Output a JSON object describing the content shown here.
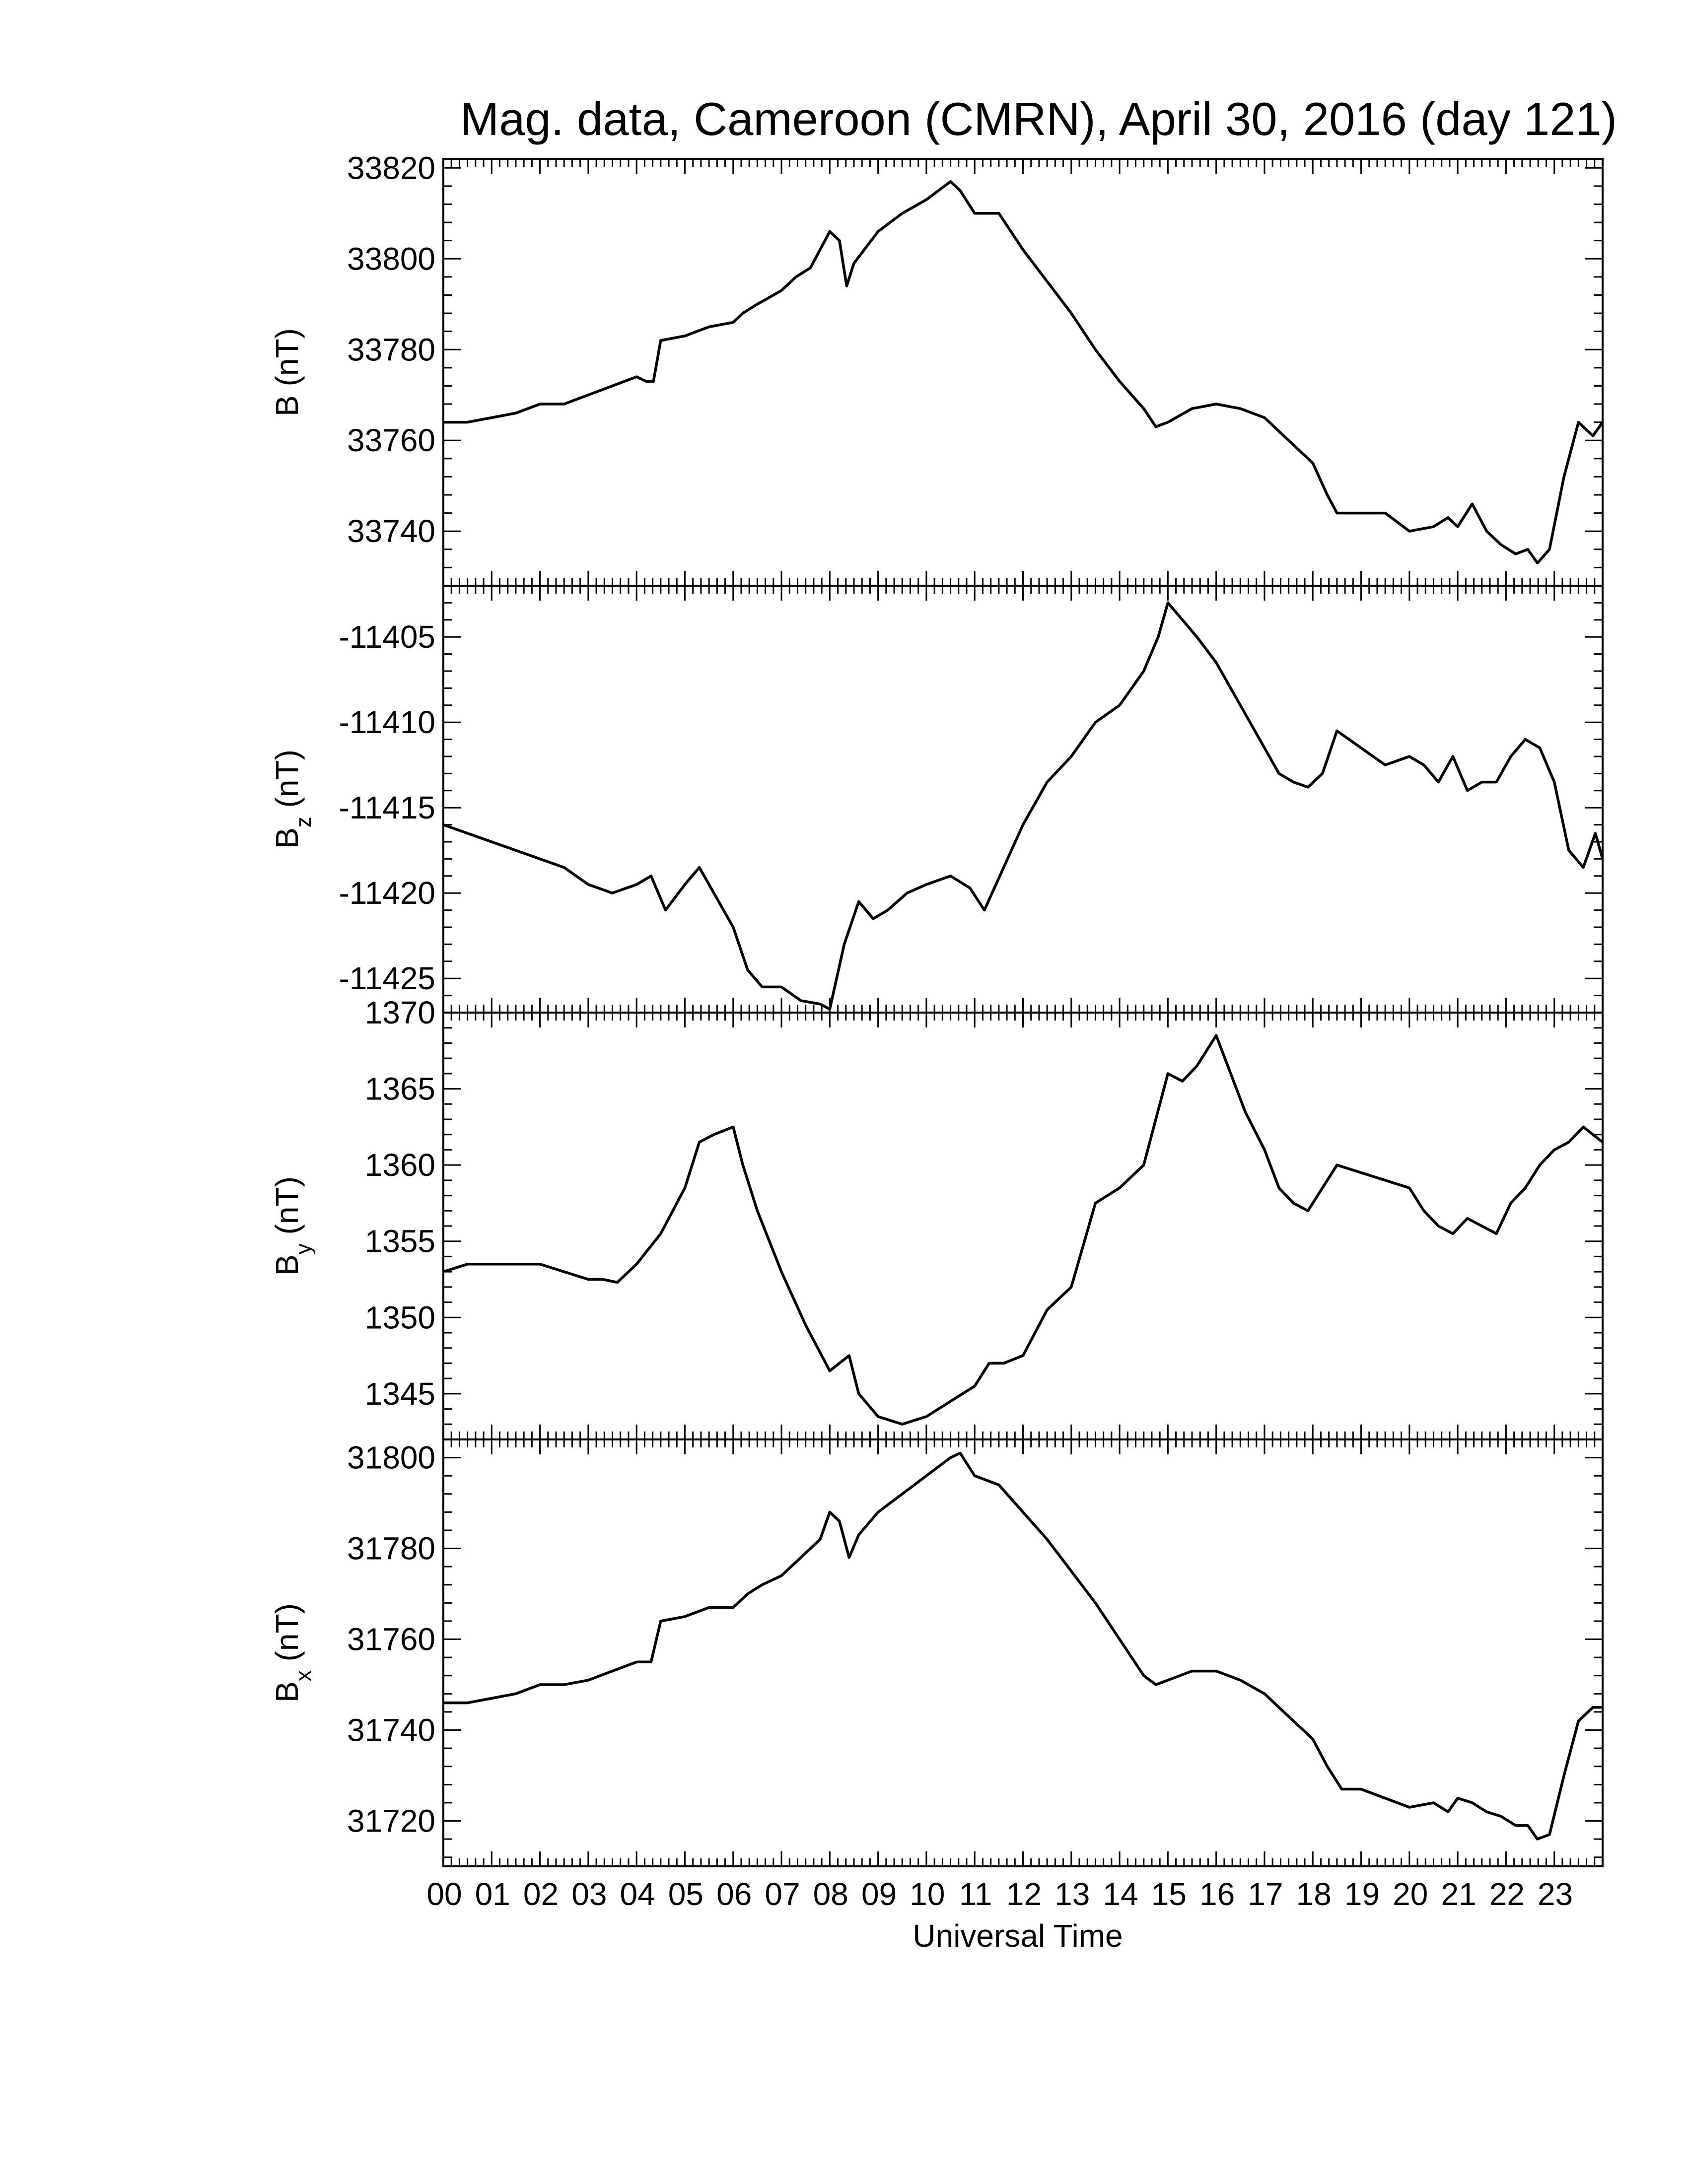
{
  "title": "Mag. data, Cameroon (CMRN), April 30, 2016 (day 121)",
  "xlabel": "Universal Time",
  "chart_data": [
    {
      "type": "line",
      "ylabel": {
        "main": "B",
        "sub": "",
        "unit": "(nT)"
      },
      "ylim": [
        33728,
        33822
      ],
      "yticks": [
        33740,
        33760,
        33780,
        33800,
        33820
      ],
      "ytick_labels": [
        "33740",
        "33760",
        "33780",
        "33800",
        "33820"
      ],
      "series": [
        {
          "x": [
            0,
            0.5,
            1,
            1.5,
            2,
            2.5,
            3,
            3.5,
            4,
            4.2,
            4.35,
            4.5,
            5,
            5.5,
            6,
            6.2,
            6.5,
            7,
            7.3,
            7.6,
            8,
            8.2,
            8.35,
            8.5,
            9,
            9.5,
            10,
            10.5,
            10.7,
            11,
            11.5,
            12,
            12.5,
            13,
            13.5,
            14,
            14.5,
            14.75,
            15,
            15.5,
            16,
            16.5,
            17,
            17.5,
            18,
            18.3,
            18.5,
            19,
            19.5,
            20,
            20.5,
            20.8,
            21,
            21.3,
            21.6,
            21.9,
            22.2,
            22.45,
            22.65,
            22.9,
            23.2,
            23.5,
            23.8,
            24
          ],
          "y": [
            33764,
            33764,
            33765,
            33766,
            33768,
            33768,
            33770,
            33772,
            33774,
            33773,
            33773,
            33782,
            33783,
            33785,
            33786,
            33788,
            33790,
            33793,
            33796,
            33798,
            33806,
            33804,
            33794,
            33799,
            33806,
            33810,
            33813,
            33817,
            33815,
            33810,
            33810,
            33802,
            33795,
            33788,
            33780,
            33773,
            33767,
            33763,
            33764,
            33767,
            33768,
            33767,
            33765,
            33760,
            33755,
            33748,
            33744,
            33744,
            33744,
            33740,
            33741,
            33743,
            33741,
            33746,
            33740,
            33737,
            33735,
            33736,
            33733,
            33736,
            33752,
            33764,
            33761,
            33764
          ]
        }
      ]
    },
    {
      "type": "line",
      "ylabel": {
        "main": "B",
        "sub": "z",
        "unit": "(nT)"
      },
      "ylim": [
        -11427,
        -11402
      ],
      "yticks": [
        -11425,
        -11420,
        -11415,
        -11410,
        -11405
      ],
      "ytick_labels": [
        "-11425",
        "-11420",
        "-11415",
        "-11410",
        "-11405"
      ],
      "series": [
        {
          "x": [
            0,
            0.5,
            1,
            1.5,
            2,
            2.5,
            3,
            3.5,
            4,
            4.3,
            4.6,
            5,
            5.3,
            5.7,
            6,
            6.3,
            6.6,
            7,
            7.4,
            7.8,
            8,
            8.3,
            8.6,
            8.9,
            9.2,
            9.6,
            10,
            10.5,
            10.9,
            11.2,
            11.6,
            12,
            12.5,
            13,
            13.5,
            14,
            14.5,
            14.8,
            15,
            15.3,
            15.6,
            16,
            16.5,
            17,
            17.3,
            17.6,
            17.9,
            18.2,
            18.5,
            19,
            19.5,
            20,
            20.3,
            20.6,
            20.9,
            21.2,
            21.5,
            21.8,
            22.1,
            22.4,
            22.7,
            23,
            23.3,
            23.6,
            23.85,
            24
          ],
          "y": [
            -11416,
            -11416.5,
            -11417,
            -11417.5,
            -11418,
            -11418.5,
            -11419.5,
            -11420,
            -11419.5,
            -11419,
            -11421,
            -11419.5,
            -11418.5,
            -11420.5,
            -11422,
            -11424.5,
            -11425.5,
            -11425.5,
            -11426.3,
            -11426.5,
            -11426.8,
            -11423,
            -11420.5,
            -11421.5,
            -11421,
            -11420,
            -11419.5,
            -11419,
            -11419.7,
            -11421,
            -11418.5,
            -11416,
            -11413.5,
            -11412,
            -11410,
            -11409,
            -11407,
            -11405,
            -11403,
            -11404,
            -11405,
            -11406.5,
            -11409,
            -11411.5,
            -11413,
            -11413.5,
            -11413.8,
            -11413,
            -11410.5,
            -11411.5,
            -11412.5,
            -11412,
            -11412.5,
            -11413.5,
            -11412,
            -11414,
            -11413.5,
            -11413.5,
            -11412,
            -11411,
            -11411.5,
            -11413.5,
            -11417.5,
            -11418.5,
            -11416.5,
            -11418
          ]
        }
      ]
    },
    {
      "type": "line",
      "ylabel": {
        "main": "B",
        "sub": "y",
        "unit": "(nT)"
      },
      "ylim": [
        1342,
        1370
      ],
      "yticks": [
        1345,
        1350,
        1355,
        1360,
        1365,
        1370
      ],
      "ytick_labels": [
        "1345",
        "1350",
        "1355",
        "1360",
        "1365",
        "1370"
      ],
      "series": [
        {
          "x": [
            0,
            0.5,
            1,
            1.5,
            2,
            2.5,
            3,
            3.3,
            3.6,
            4,
            4.5,
            5,
            5.3,
            5.6,
            6,
            6.2,
            6.5,
            7,
            7.5,
            8,
            8.2,
            8.4,
            8.6,
            9,
            9.5,
            10,
            10.5,
            11,
            11.3,
            11.6,
            12,
            12.5,
            13,
            13.5,
            14,
            14.5,
            15,
            15.3,
            15.6,
            16,
            16.3,
            16.6,
            17,
            17.3,
            17.6,
            17.9,
            18.2,
            18.5,
            19,
            19.5,
            20,
            20.3,
            20.6,
            20.9,
            21.2,
            21.5,
            21.8,
            22.1,
            22.4,
            22.7,
            23,
            23.3,
            23.6,
            24
          ],
          "y": [
            1353,
            1353.5,
            1353.5,
            1353.5,
            1353.5,
            1353,
            1352.5,
            1352.5,
            1352.3,
            1353.5,
            1355.5,
            1358.5,
            1361.5,
            1362,
            1362.5,
            1360,
            1357,
            1353,
            1349.5,
            1346.5,
            1347,
            1347.5,
            1345,
            1343.5,
            1343,
            1343.5,
            1344.5,
            1345.5,
            1347,
            1347,
            1347.5,
            1350.5,
            1352,
            1357.5,
            1358.5,
            1360,
            1366,
            1365.5,
            1366.5,
            1368.5,
            1366,
            1363.5,
            1361,
            1358.5,
            1357.5,
            1357,
            1358.5,
            1360,
            1359.5,
            1359,
            1358.5,
            1357,
            1356,
            1355.5,
            1356.5,
            1356,
            1355.5,
            1357.5,
            1358.5,
            1360,
            1361,
            1361.5,
            1362.5,
            1361.5
          ]
        }
      ]
    },
    {
      "type": "line",
      "ylabel": {
        "main": "B",
        "sub": "x",
        "unit": "(nT)"
      },
      "ylim": [
        31710,
        31804
      ],
      "yticks": [
        31720,
        31740,
        31760,
        31780,
        31800
      ],
      "ytick_labels": [
        "31720",
        "31740",
        "31760",
        "31780",
        "31800"
      ],
      "series": [
        {
          "x": [
            0,
            0.5,
            1,
            1.5,
            2,
            2.5,
            3,
            3.5,
            4,
            4.3,
            4.5,
            5,
            5.5,
            6,
            6.3,
            6.6,
            7,
            7.4,
            7.8,
            8,
            8.2,
            8.4,
            8.6,
            9,
            9.5,
            10,
            10.5,
            10.7,
            11,
            11.5,
            12,
            12.5,
            13,
            13.5,
            14,
            14.5,
            14.75,
            15,
            15.5,
            16,
            16.5,
            17,
            17.5,
            18,
            18.3,
            18.6,
            19,
            19.5,
            20,
            20.5,
            20.8,
            21,
            21.3,
            21.6,
            21.9,
            22.2,
            22.45,
            22.65,
            22.9,
            23.2,
            23.5,
            23.8,
            24
          ],
          "y": [
            31746,
            31746,
            31747,
            31748,
            31750,
            31750,
            31751,
            31753,
            31755,
            31755,
            31764,
            31765,
            31767,
            31767,
            31770,
            31772,
            31774,
            31778,
            31782,
            31788,
            31786,
            31778,
            31783,
            31788,
            31792,
            31796,
            31800,
            31801,
            31796,
            31794,
            31788,
            31782,
            31775,
            31768,
            31760,
            31752,
            31750,
            31751,
            31753,
            31753,
            31751,
            31748,
            31743,
            31738,
            31732,
            31727,
            31727,
            31725,
            31723,
            31724,
            31722,
            31725,
            31724,
            31722,
            31721,
            31719,
            31719,
            31716,
            31717,
            31730,
            31742,
            31745,
            31745
          ]
        }
      ]
    }
  ],
  "x_axis": {
    "xlim": [
      0,
      24
    ],
    "tick_labels": [
      "00",
      "01",
      "02",
      "03",
      "04",
      "05",
      "06",
      "07",
      "08",
      "09",
      "10",
      "11",
      "12",
      "13",
      "14",
      "15",
      "16",
      "17",
      "18",
      "19",
      "20",
      "21",
      "22",
      "23"
    ]
  }
}
